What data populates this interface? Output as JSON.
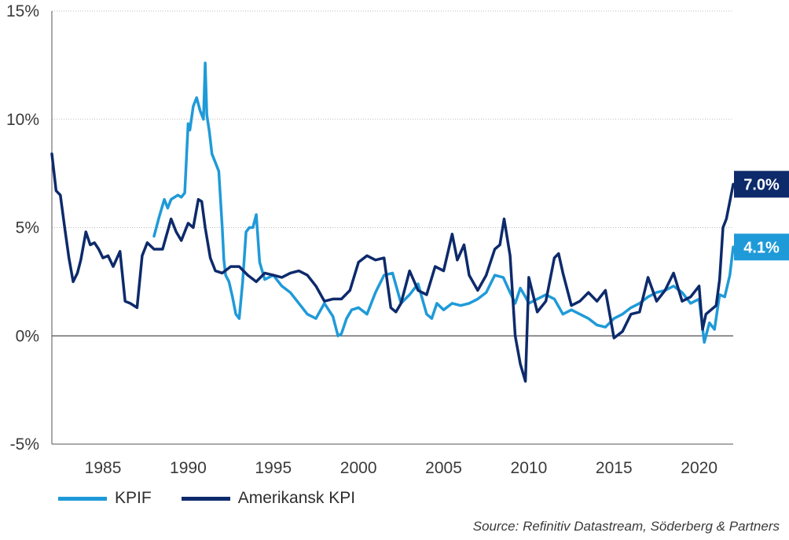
{
  "chart_data": {
    "type": "line",
    "title": "",
    "xlabel": "",
    "ylabel": "",
    "xlim": [
      1982.0,
      2022.0
    ],
    "ylim": [
      -5,
      15
    ],
    "yticks": [
      -5,
      0,
      5,
      10,
      15
    ],
    "ytick_labels": [
      "-5%",
      "0%",
      "5%",
      "10%",
      "15%"
    ],
    "xticks": [
      1985,
      1990,
      1995,
      2000,
      2005,
      2010,
      2015,
      2020
    ],
    "xtick_labels": [
      "1985",
      "1990",
      "1995",
      "2000",
      "2005",
      "2010",
      "2015",
      "2020"
    ],
    "grid": "horizontal dotted",
    "legend_position": "bottom-left",
    "series": [
      {
        "name": "KPIF",
        "color": "#1f9ad8",
        "end_label": "4.1%",
        "x": [
          1988.0,
          1988.3,
          1988.6,
          1988.8,
          1989.0,
          1989.2,
          1989.4,
          1989.6,
          1989.8,
          1990.0,
          1990.1,
          1990.3,
          1990.5,
          1990.7,
          1990.9,
          1991.0,
          1991.1,
          1991.25,
          1991.4,
          1991.6,
          1991.8,
          1992.0,
          1992.1,
          1992.2,
          1992.4,
          1992.6,
          1992.8,
          1993.0,
          1993.2,
          1993.4,
          1993.6,
          1993.8,
          1994.0,
          1994.2,
          1994.5,
          1995.0,
          1995.5,
          1996.0,
          1996.5,
          1997.0,
          1997.5,
          1998.0,
          1998.5,
          1998.8,
          1999.0,
          1999.3,
          1999.6,
          2000.0,
          2000.5,
          2001.0,
          2001.5,
          2002.0,
          2002.5,
          2003.0,
          2003.5,
          2004.0,
          2004.3,
          2004.6,
          2005.0,
          2005.5,
          2006.0,
          2006.5,
          2007.0,
          2007.5,
          2008.0,
          2008.5,
          2008.9,
          2009.2,
          2009.5,
          2009.8,
          2010.0,
          2010.5,
          2011.0,
          2011.5,
          2012.0,
          2012.5,
          2013.0,
          2013.5,
          2014.0,
          2014.5,
          2015.0,
          2015.5,
          2016.0,
          2016.5,
          2017.0,
          2017.5,
          2018.0,
          2018.5,
          2019.0,
          2019.5,
          2020.0,
          2020.3,
          2020.6,
          2020.9,
          2021.2,
          2021.5,
          2021.8,
          2022.0
        ],
        "values": [
          4.6,
          5.5,
          6.3,
          5.9,
          6.3,
          6.4,
          6.5,
          6.4,
          6.6,
          9.8,
          9.5,
          10.6,
          11.0,
          10.4,
          10.0,
          12.6,
          10.2,
          9.4,
          8.4,
          8.0,
          7.6,
          5.0,
          3.5,
          2.8,
          2.5,
          1.8,
          1.0,
          0.8,
          2.5,
          4.8,
          5.0,
          5.0,
          5.6,
          3.4,
          2.6,
          2.8,
          2.3,
          2.0,
          1.5,
          1.0,
          0.8,
          1.5,
          0.9,
          0.0,
          0.1,
          0.8,
          1.2,
          1.3,
          1.0,
          2.0,
          2.8,
          2.9,
          1.5,
          1.9,
          2.4,
          1.0,
          0.8,
          1.5,
          1.2,
          1.5,
          1.4,
          1.5,
          1.7,
          2.0,
          2.8,
          2.7,
          2.0,
          1.5,
          2.2,
          1.8,
          1.5,
          1.7,
          1.9,
          1.7,
          1.0,
          1.2,
          1.0,
          0.8,
          0.5,
          0.4,
          0.8,
          1.0,
          1.3,
          1.5,
          1.8,
          2.0,
          2.1,
          2.3,
          2.0,
          1.5,
          1.7,
          -0.3,
          0.6,
          0.3,
          1.9,
          1.8,
          2.8,
          4.1
        ]
      },
      {
        "name": "Amerikansk KPI",
        "color": "#0d2a6b",
        "end_label": "7.0%",
        "x": [
          1982.0,
          1982.25,
          1982.5,
          1982.75,
          1983.0,
          1983.25,
          1983.5,
          1983.7,
          1984.0,
          1984.25,
          1984.5,
          1984.75,
          1985.0,
          1985.3,
          1985.6,
          1986.0,
          1986.3,
          1986.6,
          1987.0,
          1987.3,
          1987.6,
          1988.0,
          1988.5,
          1989.0,
          1989.3,
          1989.6,
          1990.0,
          1990.3,
          1990.6,
          1990.8,
          1991.0,
          1991.3,
          1991.6,
          1992.0,
          1992.5,
          1993.0,
          1993.5,
          1994.0,
          1994.5,
          1995.0,
          1995.5,
          1996.0,
          1996.5,
          1997.0,
          1997.5,
          1998.0,
          1998.5,
          1999.0,
          1999.5,
          2000.0,
          2000.5,
          2001.0,
          2001.5,
          2001.9,
          2002.2,
          2002.5,
          2003.0,
          2003.5,
          2004.0,
          2004.5,
          2005.0,
          2005.5,
          2005.8,
          2006.2,
          2006.5,
          2007.0,
          2007.5,
          2008.0,
          2008.3,
          2008.55,
          2008.9,
          2009.2,
          2009.5,
          2009.8,
          2010.0,
          2010.5,
          2011.0,
          2011.5,
          2011.75,
          2012.0,
          2012.5,
          2013.0,
          2013.5,
          2014.0,
          2014.5,
          2015.0,
          2015.5,
          2016.0,
          2016.5,
          2017.0,
          2017.5,
          2018.0,
          2018.5,
          2019.0,
          2019.5,
          2020.0,
          2020.2,
          2020.4,
          2020.7,
          2021.0,
          2021.2,
          2021.4,
          2021.6,
          2021.8,
          2022.0
        ],
        "values": [
          8.4,
          6.7,
          6.5,
          5.0,
          3.6,
          2.5,
          2.9,
          3.5,
          4.8,
          4.2,
          4.3,
          4.0,
          3.6,
          3.7,
          3.2,
          3.9,
          1.6,
          1.5,
          1.3,
          3.7,
          4.3,
          4.0,
          4.0,
          5.4,
          4.8,
          4.4,
          5.2,
          5.0,
          6.3,
          6.2,
          5.0,
          3.6,
          3.0,
          2.9,
          3.2,
          3.2,
          2.8,
          2.5,
          2.9,
          2.8,
          2.7,
          2.9,
          3.0,
          2.8,
          2.3,
          1.6,
          1.7,
          1.7,
          2.1,
          3.4,
          3.7,
          3.5,
          3.6,
          1.3,
          1.1,
          1.5,
          3.0,
          2.1,
          1.9,
          3.2,
          3.0,
          4.7,
          3.5,
          4.2,
          2.8,
          2.1,
          2.8,
          4.0,
          4.2,
          5.4,
          3.7,
          0.0,
          -1.3,
          -2.1,
          2.7,
          1.1,
          1.6,
          3.6,
          3.8,
          2.9,
          1.4,
          1.6,
          2.0,
          1.6,
          2.1,
          -0.1,
          0.2,
          1.0,
          1.1,
          2.7,
          1.6,
          2.1,
          2.9,
          1.6,
          1.8,
          2.3,
          0.3,
          1.0,
          1.2,
          1.4,
          2.6,
          5.0,
          5.4,
          6.2,
          7.0
        ]
      }
    ]
  },
  "legend": {
    "kpif_label": "KPIF",
    "us_cpi_label": "Amerikansk KPI"
  },
  "source_text": "Source: Refinitiv Datastream, Söderberg & Partners"
}
